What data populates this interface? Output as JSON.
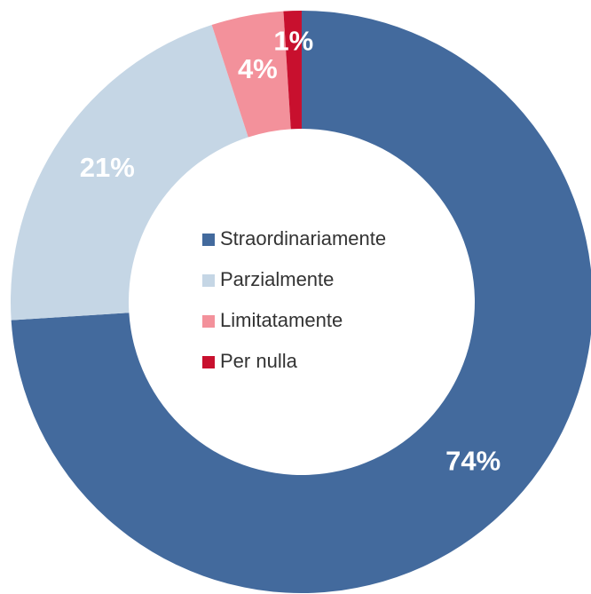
{
  "chart_data": {
    "type": "donut",
    "categories": [
      "Straordinariamente",
      "Parzialmente",
      "Limitatamente",
      "Per nulla"
    ],
    "values": [
      74,
      21,
      4,
      1
    ],
    "value_labels": [
      "74%",
      "21%",
      "4%",
      "1%"
    ],
    "colors": [
      "#436a9d",
      "#c5d6e5",
      "#f3919b",
      "#c8102e"
    ],
    "legend": "center"
  }
}
